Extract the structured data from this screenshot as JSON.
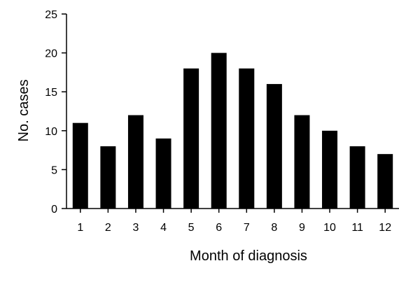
{
  "chart_data": {
    "type": "bar",
    "categories": [
      "1",
      "2",
      "3",
      "4",
      "5",
      "6",
      "7",
      "8",
      "9",
      "10",
      "11",
      "12"
    ],
    "values": [
      11,
      8,
      12,
      9,
      18,
      20,
      18,
      16,
      12,
      10,
      8,
      7
    ],
    "title": "",
    "xlabel": "Month of diagnosis",
    "ylabel": "No. cases",
    "ylim": [
      0,
      25
    ],
    "yticks": [
      0,
      5,
      10,
      15,
      20,
      25
    ],
    "grid": false,
    "bar_color": "#000000"
  }
}
